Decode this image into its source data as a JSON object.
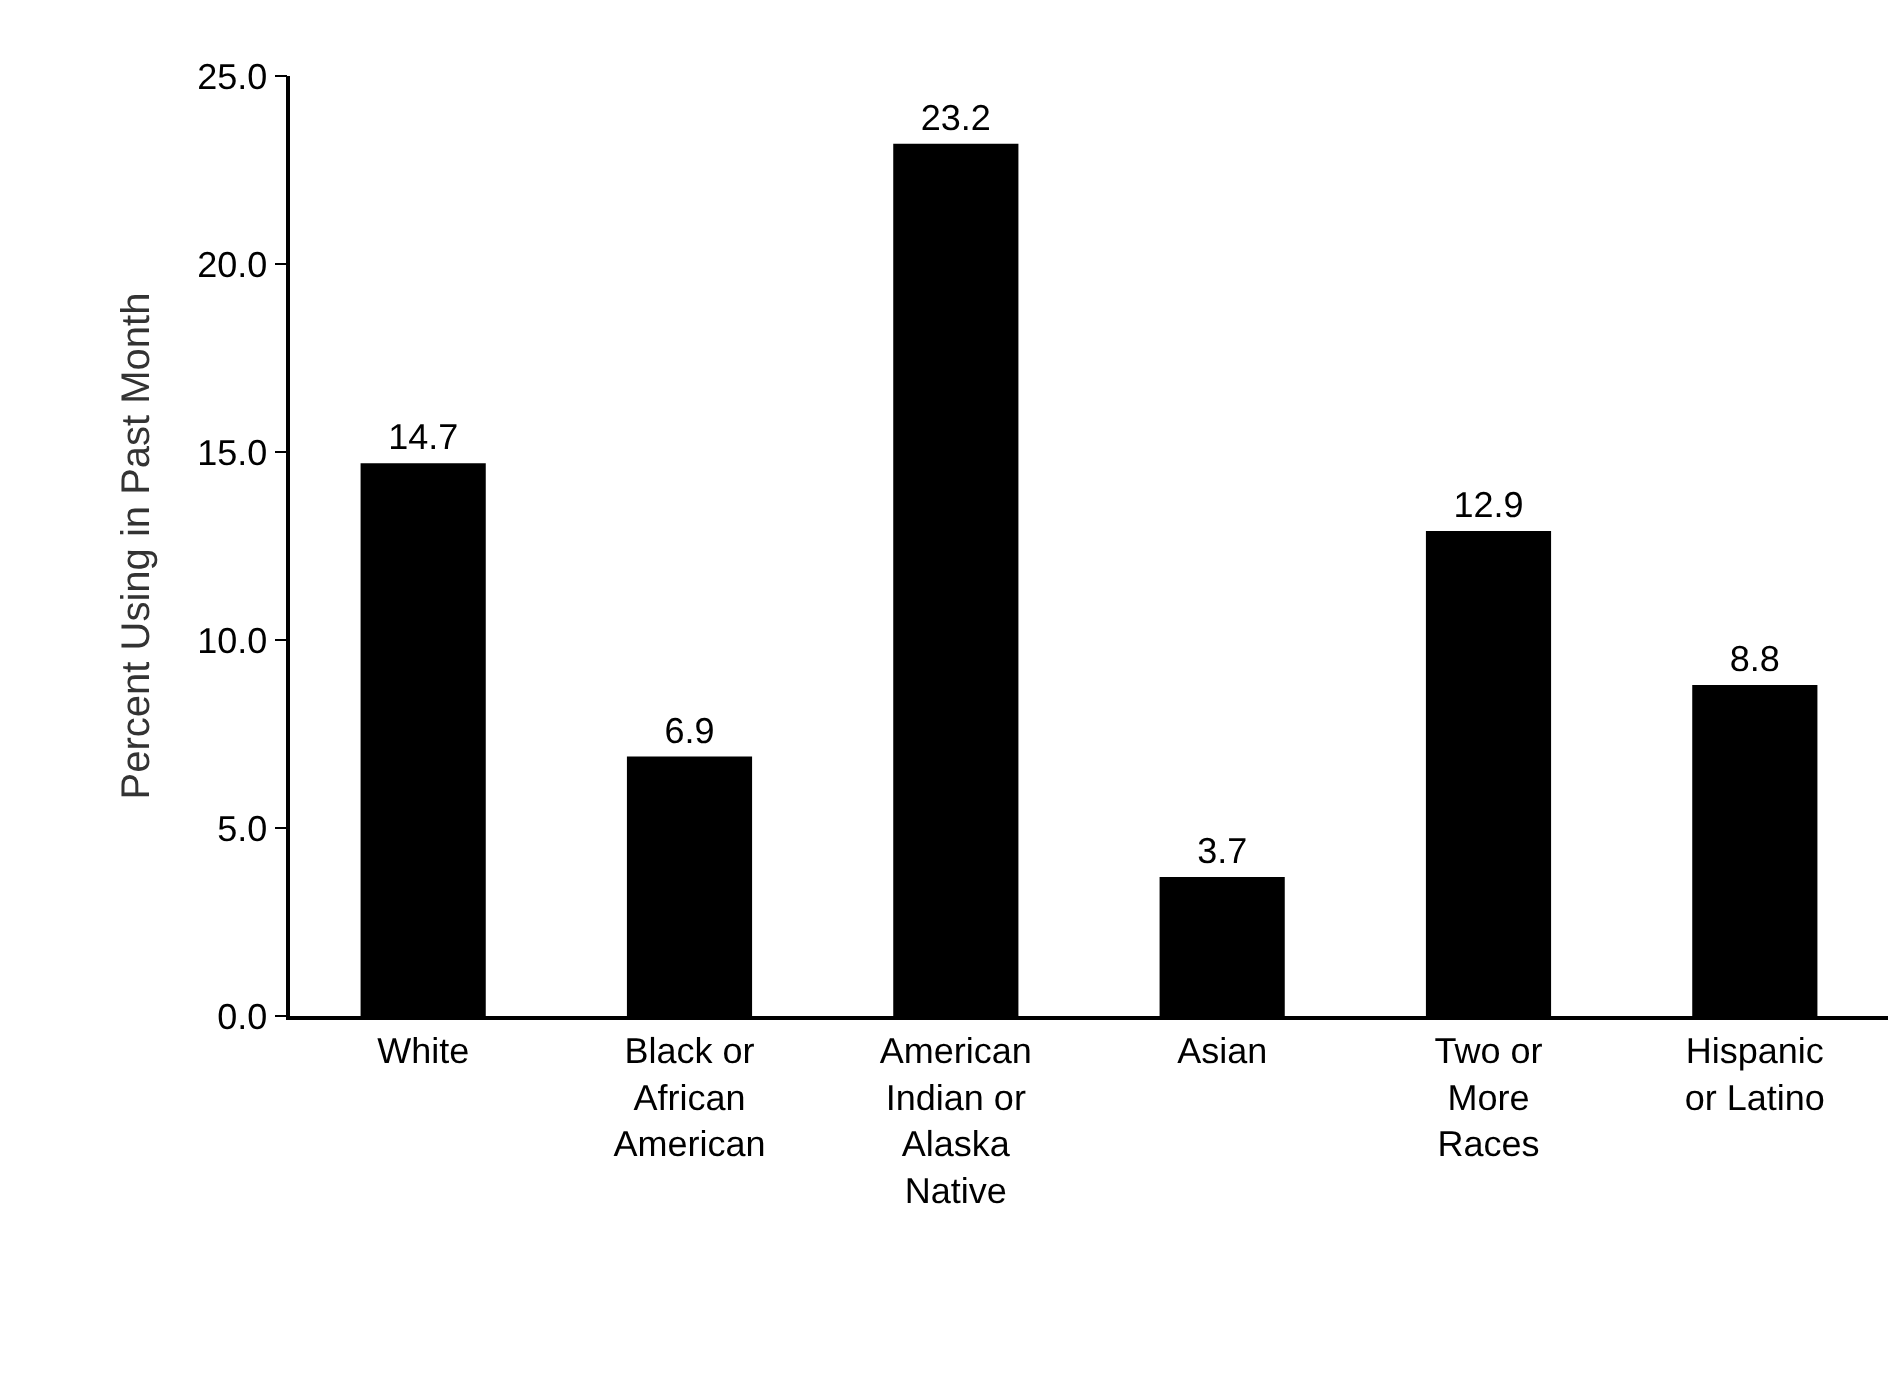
{
  "chart_data": {
    "type": "bar",
    "ylabel": "Percent Using in Past Month",
    "categories": [
      "White",
      "Black or\nAfrican\nAmerican",
      "American\nIndian or\nAlaska\nNative",
      "Asian",
      "Two or\nMore\nRaces",
      "Hispanic\nor Latino"
    ],
    "values": [
      14.7,
      6.9,
      23.2,
      3.7,
      12.9,
      8.8
    ],
    "color": "#000000",
    "ylim": [
      0,
      25
    ],
    "yticks": [
      {
        "value": 0,
        "label": "0.0"
      },
      {
        "value": 5,
        "label": "5.0"
      },
      {
        "value": 10,
        "label": "10.0"
      },
      {
        "value": 15,
        "label": "15.0"
      },
      {
        "value": 20,
        "label": "20.0"
      },
      {
        "value": 25,
        "label": "25.0"
      }
    ],
    "data_labels": true,
    "grid": false,
    "legend": false
  }
}
